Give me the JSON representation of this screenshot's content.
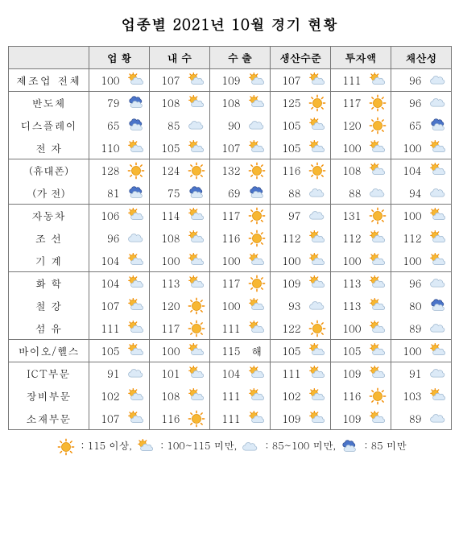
{
  "title": "업종별 2021년 10월 경기 현황",
  "headers": [
    "",
    "업 황",
    "내 수",
    "수 출",
    "생산수준",
    "투자액",
    "채산성"
  ],
  "thresholds": {
    "sun": 115,
    "partial_hi": 100,
    "cloud_low": 85
  },
  "groups": [
    {
      "rows": [
        {
          "label": "제조업 전체",
          "cls": "",
          "vals": [
            100,
            107,
            109,
            107,
            111,
            96
          ]
        }
      ]
    },
    {
      "rows": [
        {
          "label": "반도체",
          "cls": "sub",
          "vals": [
            79,
            108,
            108,
            125,
            117,
            96
          ]
        },
        {
          "label": "디스플레이",
          "cls": "sub",
          "vals": [
            65,
            85,
            90,
            105,
            120,
            65
          ]
        },
        {
          "label": "전 자",
          "cls": "sub",
          "vals": [
            110,
            105,
            107,
            105,
            100,
            100
          ]
        }
      ]
    },
    {
      "rows": [
        {
          "label": "(휴대폰)",
          "cls": "paren",
          "vals": [
            128,
            124,
            132,
            116,
            108,
            104
          ]
        },
        {
          "label": "(가 전)",
          "cls": "paren",
          "vals": [
            81,
            75,
            69,
            88,
            88,
            94
          ]
        }
      ]
    },
    {
      "rows": [
        {
          "label": "자동차",
          "cls": "sub",
          "vals": [
            106,
            114,
            117,
            97,
            131,
            100
          ]
        },
        {
          "label": "조 선",
          "cls": "sub",
          "vals": [
            96,
            108,
            116,
            112,
            112,
            112
          ]
        },
        {
          "label": "기 계",
          "cls": "sub",
          "vals": [
            104,
            100,
            100,
            100,
            100,
            100
          ]
        }
      ]
    },
    {
      "rows": [
        {
          "label": "화 학",
          "cls": "sub",
          "vals": [
            104,
            113,
            117,
            109,
            113,
            96
          ]
        },
        {
          "label": "철 강",
          "cls": "sub",
          "vals": [
            107,
            120,
            100,
            93,
            113,
            80
          ]
        },
        {
          "label": "섬 유",
          "cls": "sub",
          "vals": [
            111,
            117,
            111,
            122,
            100,
            89
          ]
        }
      ]
    },
    {
      "rows": [
        {
          "label": "바이오/헬스",
          "cls": "sub",
          "vals": [
            105,
            100,
            115,
            105,
            105,
            100
          ],
          "forceIcons": [
            null,
            null,
            "hae",
            null,
            null,
            null
          ]
        }
      ]
    },
    {
      "rows": [
        {
          "label": "ICT부문",
          "cls": "sub",
          "vals": [
            91,
            101,
            104,
            111,
            109,
            91
          ]
        },
        {
          "label": "장비부문",
          "cls": "sub",
          "vals": [
            102,
            108,
            111,
            102,
            116,
            103
          ]
        },
        {
          "label": "소재부문",
          "cls": "sub",
          "vals": [
            107,
            116,
            111,
            109,
            109,
            89
          ]
        }
      ]
    }
  ],
  "legend": [
    {
      "icon": "sun",
      "text": " : 115 이상,"
    },
    {
      "icon": "partial",
      "text": " : 100~115 미만,"
    },
    {
      "icon": "cloud",
      "text": " : 85~100 미만,"
    },
    {
      "icon": "rain",
      "text": " : 85 미만"
    }
  ],
  "colors": {
    "sun_fill": "#f7b733",
    "sun_stroke": "#e08e00",
    "cloud_fill": "#dceaf7",
    "cloud_stroke": "#9fb8d0",
    "rain_fill": "#4a74c9",
    "rain_stroke": "#2f4d8f",
    "ray": "#f28c00"
  }
}
